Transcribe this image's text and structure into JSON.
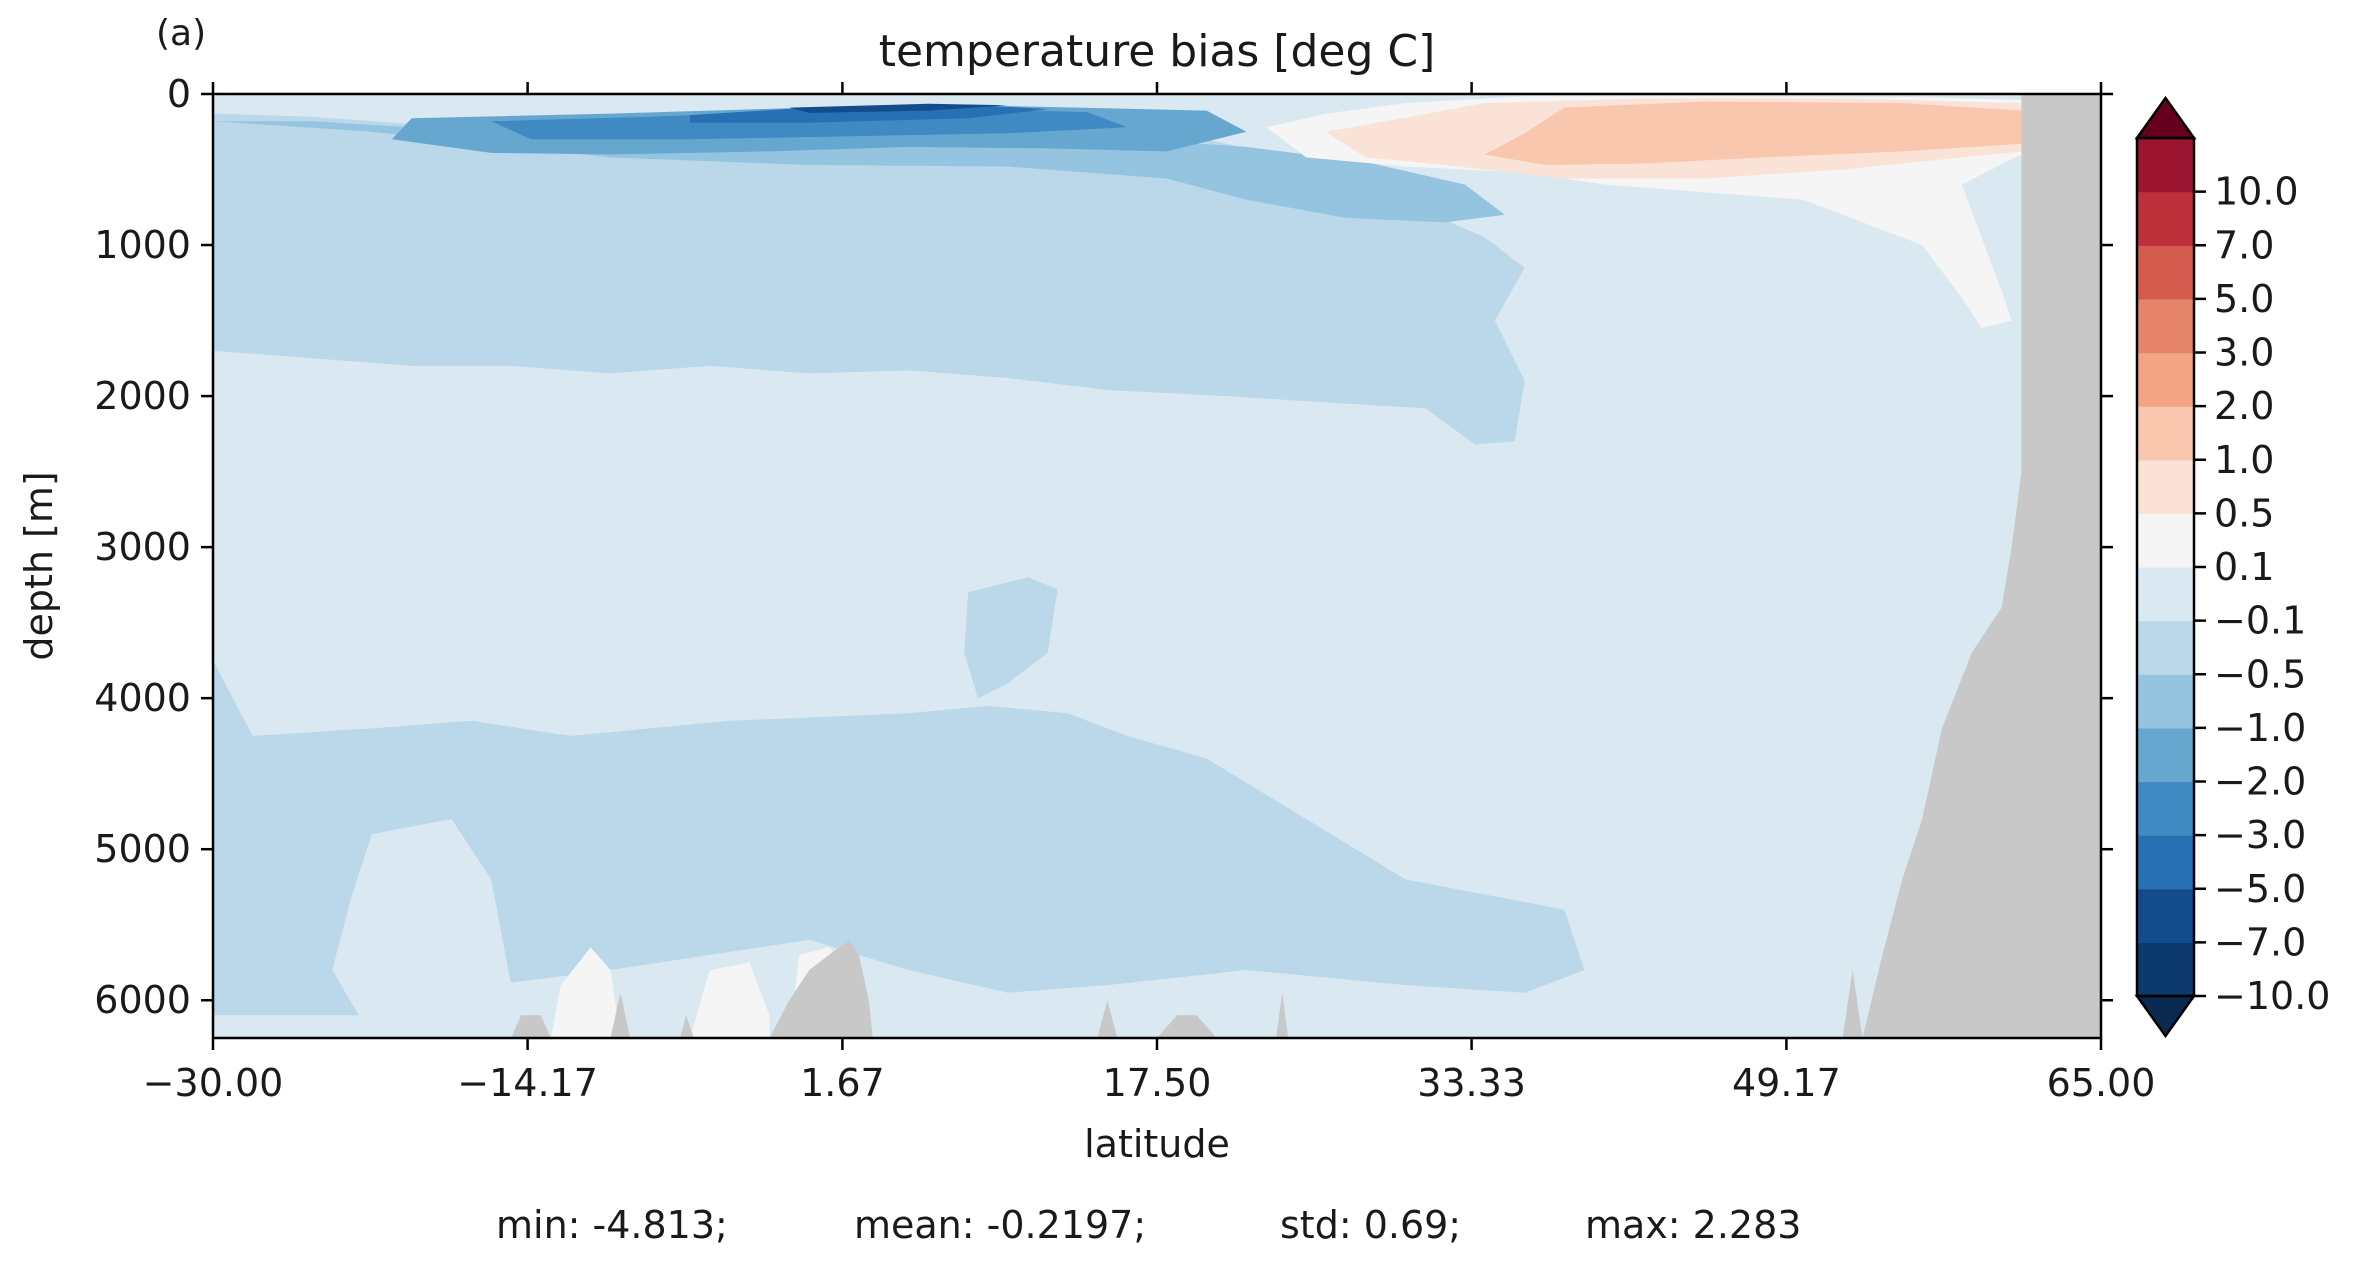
{
  "chart_data": {
    "type": "heatmap",
    "panel_label": "(a)",
    "title": "temperature bias [deg C]",
    "xlabel": "latitude",
    "ylabel": "depth [m]",
    "xlim": [
      -30.0,
      65.0
    ],
    "ylim": [
      6250,
      0
    ],
    "x_ticks": [
      -30.0,
      -14.17,
      1.67,
      17.5,
      33.33,
      49.17,
      65.0
    ],
    "x_tick_labels": [
      "−30.00",
      "−14.17",
      "1.67",
      "17.50",
      "33.33",
      "49.17",
      "65.00"
    ],
    "y_ticks": [
      0,
      1000,
      2000,
      3000,
      4000,
      5000,
      6000
    ],
    "y_tick_labels": [
      "0",
      "1000",
      "2000",
      "3000",
      "4000",
      "5000",
      "6000"
    ],
    "colorbar": {
      "extend": "both",
      "boundaries": [
        -10.0,
        -7.0,
        -5.0,
        -3.0,
        -2.0,
        -1.0,
        -0.5,
        -0.1,
        0.1,
        0.5,
        1.0,
        2.0,
        3.0,
        5.0,
        7.0,
        10.0
      ],
      "tick_labels": [
        "−10.0",
        "−7.0",
        "−5.0",
        "−3.0",
        "−2.0",
        "−1.0",
        "−0.5",
        "−0.1",
        "0.1",
        "0.5",
        "1.0",
        "2.0",
        "3.0",
        "5.0",
        "7.0",
        "10.0"
      ],
      "colors": [
        "#0d3a6e",
        "#134c8d",
        "#2870b4",
        "#3f8ac2",
        "#66a7d0",
        "#94c4e0",
        "#bad8ea",
        "#dae8f2",
        "#f4f5f4",
        "#fae2d6",
        "#f9c6ae",
        "#f3a583",
        "#e6846a",
        "#d45b4e",
        "#bd2f39",
        "#9b1530"
      ],
      "under_color": "#0a2a52",
      "over_color": "#67001f"
    },
    "land_color": "#c8c8c8",
    "regions": [
      {
        "value": -0.3,
        "polygon": [
          [
            -30,
            130
          ],
          [
            -25,
            150
          ],
          [
            -20,
            200
          ],
          [
            -10,
            300
          ],
          [
            0,
            250
          ],
          [
            10,
            220
          ],
          [
            20,
            300
          ],
          [
            25,
            450
          ],
          [
            30,
            720
          ],
          [
            34,
            950
          ],
          [
            36,
            1150
          ],
          [
            34.5,
            1500
          ],
          [
            36,
            1900
          ],
          [
            35.5,
            2300
          ],
          [
            33.5,
            2320
          ],
          [
            31,
            2080
          ],
          [
            27,
            2050
          ],
          [
            21,
            2000
          ],
          [
            15,
            1960
          ],
          [
            10,
            1880
          ],
          [
            5,
            1830
          ],
          [
            0,
            1850
          ],
          [
            -5,
            1800
          ],
          [
            -10,
            1850
          ],
          [
            -15,
            1800
          ],
          [
            -20,
            1800
          ],
          [
            -25,
            1750
          ],
          [
            -30,
            1700
          ]
        ]
      },
      {
        "value": -0.7,
        "polygon": [
          [
            -30,
            180
          ],
          [
            -22,
            250
          ],
          [
            -10,
            420
          ],
          [
            0,
            470
          ],
          [
            10,
            480
          ],
          [
            18,
            560
          ],
          [
            22,
            700
          ],
          [
            27,
            820
          ],
          [
            32,
            850
          ],
          [
            35,
            800
          ],
          [
            33,
            600
          ],
          [
            28,
            450
          ],
          [
            22,
            350
          ],
          [
            14,
            280
          ],
          [
            5,
            260
          ],
          [
            -5,
            250
          ],
          [
            -15,
            260
          ],
          [
            -25,
            180
          ]
        ]
      },
      {
        "value": -1.5,
        "polygon": [
          [
            -20,
            160
          ],
          [
            -10,
            130
          ],
          [
            0,
            90
          ],
          [
            10,
            80
          ],
          [
            20,
            110
          ],
          [
            22,
            250
          ],
          [
            18,
            380
          ],
          [
            12,
            360
          ],
          [
            5,
            350
          ],
          [
            -2,
            380
          ],
          [
            -10,
            400
          ],
          [
            -16,
            390
          ],
          [
            -21,
            300
          ]
        ]
      },
      {
        "value": -2.5,
        "polygon": [
          [
            -16,
            180
          ],
          [
            -8,
            150
          ],
          [
            0,
            110
          ],
          [
            8,
            100
          ],
          [
            14,
            120
          ],
          [
            16,
            220
          ],
          [
            10,
            260
          ],
          [
            2,
            280
          ],
          [
            -6,
            300
          ],
          [
            -14,
            300
          ]
        ]
      },
      {
        "value": -3.5,
        "polygon": [
          [
            -6,
            140
          ],
          [
            0,
            90
          ],
          [
            8,
            70
          ],
          [
            12,
            100
          ],
          [
            8,
            160
          ],
          [
            0,
            190
          ],
          [
            -6,
            190
          ]
        ]
      },
      {
        "value": -5.5,
        "polygon": [
          [
            -1,
            90
          ],
          [
            6,
            65
          ],
          [
            10,
            75
          ],
          [
            6,
            110
          ],
          [
            0,
            125
          ]
        ]
      },
      {
        "value": 0.3,
        "polygon": [
          [
            23,
            220
          ],
          [
            26,
            130
          ],
          [
            30,
            60
          ],
          [
            36,
            15
          ],
          [
            45,
            15
          ],
          [
            56,
            20
          ],
          [
            61,
            40
          ],
          [
            61,
            400
          ],
          [
            58,
            600
          ],
          [
            60,
            1300
          ],
          [
            60.5,
            1500
          ],
          [
            59,
            1550
          ],
          [
            58,
            1350
          ],
          [
            56,
            1000
          ],
          [
            50,
            700
          ],
          [
            45,
            650
          ],
          [
            40,
            600
          ],
          [
            36,
            520
          ],
          [
            30,
            480
          ],
          [
            25,
            420
          ]
        ]
      },
      {
        "value": 0.7,
        "polygon": [
          [
            26,
            250
          ],
          [
            29,
            180
          ],
          [
            34,
            60
          ],
          [
            42,
            30
          ],
          [
            52,
            30
          ],
          [
            61,
            60
          ],
          [
            61,
            380
          ],
          [
            58,
            420
          ],
          [
            52,
            500
          ],
          [
            45,
            560
          ],
          [
            38,
            560
          ],
          [
            32,
            470
          ],
          [
            28,
            420
          ]
        ]
      },
      {
        "value": 1.4,
        "polygon": [
          [
            34,
            400
          ],
          [
            36,
            260
          ],
          [
            38,
            90
          ],
          [
            45,
            50
          ],
          [
            55,
            60
          ],
          [
            61,
            110
          ],
          [
            61,
            330
          ],
          [
            55,
            380
          ],
          [
            48,
            420
          ],
          [
            42,
            460
          ],
          [
            37,
            470
          ]
        ]
      },
      {
        "value": -0.3,
        "polygon": [
          [
            -30,
            3750
          ],
          [
            -28,
            4250
          ],
          [
            -22,
            4200
          ],
          [
            -17,
            4150
          ],
          [
            -12,
            4250
          ],
          [
            -4,
            4150
          ],
          [
            5,
            4100
          ],
          [
            9,
            4050
          ],
          [
            13,
            4100
          ],
          [
            16,
            4250
          ],
          [
            20,
            4400
          ],
          [
            25,
            4800
          ],
          [
            30,
            5200
          ],
          [
            34,
            5300
          ],
          [
            38,
            5400
          ],
          [
            39,
            5800
          ],
          [
            36,
            5950
          ],
          [
            30,
            5900
          ],
          [
            22,
            5800
          ],
          [
            15,
            5900
          ],
          [
            10,
            5950
          ],
          [
            5,
            5800
          ],
          [
            0,
            5600
          ],
          [
            -5,
            5700
          ],
          [
            -10,
            5800
          ],
          [
            -16,
            5900
          ],
          [
            -22,
            6100
          ],
          [
            -27,
            6100
          ],
          [
            -30,
            6100
          ]
        ]
      },
      {
        "value": -0.3,
        "polygon": [
          [
            8,
            3300
          ],
          [
            11,
            3200
          ],
          [
            12.5,
            3280
          ],
          [
            12,
            3700
          ],
          [
            10,
            3900
          ],
          [
            8.5,
            4000
          ],
          [
            7.8,
            3700
          ]
        ]
      },
      {
        "value": 0.0,
        "polygon": [
          [
            -22,
            4900
          ],
          [
            -18,
            4800
          ],
          [
            -16,
            5200
          ],
          [
            -15,
            5900
          ],
          [
            -17,
            6250
          ],
          [
            -22,
            6250
          ],
          [
            -24,
            5800
          ],
          [
            -23,
            5300
          ]
        ]
      },
      {
        "value": 0.3,
        "polygon": [
          [
            -13,
            6250
          ],
          [
            -12.5,
            5900
          ],
          [
            -11,
            5650
          ],
          [
            -10,
            5800
          ],
          [
            -9.5,
            6250
          ]
        ]
      },
      {
        "value": 0.3,
        "polygon": [
          [
            -6,
            6250
          ],
          [
            -5,
            5800
          ],
          [
            -3,
            5750
          ],
          [
            -2,
            6100
          ],
          [
            -2,
            6250
          ]
        ]
      },
      {
        "value": 0.3,
        "polygon": [
          [
            -1,
            6250
          ],
          [
            -0.5,
            5700
          ],
          [
            1,
            5650
          ],
          [
            2,
            5800
          ],
          [
            2.5,
            6250
          ]
        ]
      }
    ],
    "land": [
      {
        "polygon": [
          [
            61,
            0
          ],
          [
            65,
            0
          ],
          [
            65,
            6250
          ],
          [
            53,
            6250
          ],
          [
            54,
            5700
          ],
          [
            55,
            5200
          ],
          [
            56,
            4800
          ],
          [
            57,
            4200
          ],
          [
            58.5,
            3700
          ],
          [
            60,
            3400
          ],
          [
            60.5,
            3000
          ],
          [
            61,
            2500
          ]
        ]
      },
      {
        "polygon": [
          [
            52,
            6250
          ],
          [
            52.5,
            5800
          ],
          [
            53,
            6250
          ]
        ]
      },
      {
        "polygon": [
          [
            -2,
            6250
          ],
          [
            -1,
            6000
          ],
          [
            0,
            5800
          ],
          [
            1,
            5700
          ],
          [
            2,
            5600
          ],
          [
            2.5,
            5700
          ],
          [
            3,
            6000
          ],
          [
            3.2,
            6250
          ]
        ]
      },
      {
        "polygon": [
          [
            -15,
            6250
          ],
          [
            -14.5,
            6100
          ],
          [
            -13.5,
            6100
          ],
          [
            -13,
            6250
          ]
        ]
      },
      {
        "polygon": [
          [
            -10,
            6250
          ],
          [
            -9.5,
            5950
          ],
          [
            -9,
            6250
          ]
        ]
      },
      {
        "polygon": [
          [
            -6.5,
            6250
          ],
          [
            -6.2,
            6100
          ],
          [
            -5.8,
            6250
          ]
        ]
      },
      {
        "polygon": [
          [
            14.5,
            6250
          ],
          [
            15,
            6000
          ],
          [
            15.5,
            6250
          ]
        ]
      },
      {
        "polygon": [
          [
            17.5,
            6250
          ],
          [
            18.5,
            6100
          ],
          [
            19.5,
            6100
          ],
          [
            20.5,
            6250
          ]
        ]
      },
      {
        "polygon": [
          [
            23.5,
            6250
          ],
          [
            23.8,
            5950
          ],
          [
            24.1,
            6250
          ]
        ]
      }
    ],
    "stats": {
      "min": "min: -4.813;",
      "mean": "mean: -0.2197;",
      "std": "std: 0.69;",
      "max": "max: 2.283"
    }
  }
}
